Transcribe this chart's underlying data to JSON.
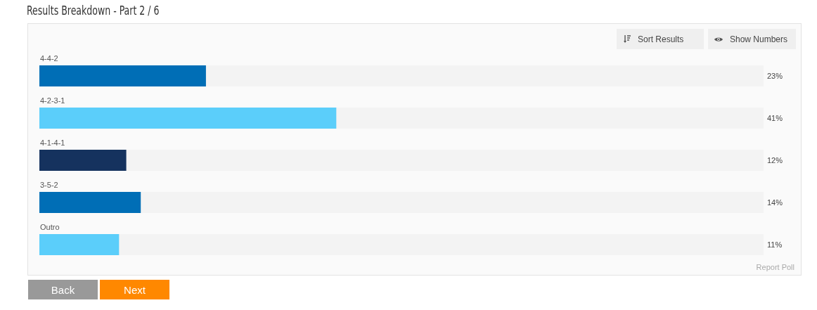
{
  "chart_data": {
    "type": "bar",
    "orientation": "horizontal",
    "title": "Results Breakdown - Part 2 / 6",
    "categories": [
      "4-4-2",
      "4-2-3-1",
      "4-1-4-1",
      "3-5-2",
      "Outro"
    ],
    "values": [
      23,
      41,
      12,
      14,
      11
    ],
    "colors": [
      "#006eb6",
      "#5bcefa",
      "#15325e",
      "#006eb6",
      "#5bcefa"
    ],
    "value_labels": [
      "23%",
      "41%",
      "12%",
      "14%",
      "11%"
    ],
    "xlim": [
      0,
      100
    ],
    "tick_labels": "y",
    "annotations": [
      "Sort Results",
      "Show Numbers",
      "Report Poll",
      "Back",
      "Next"
    ]
  }
}
